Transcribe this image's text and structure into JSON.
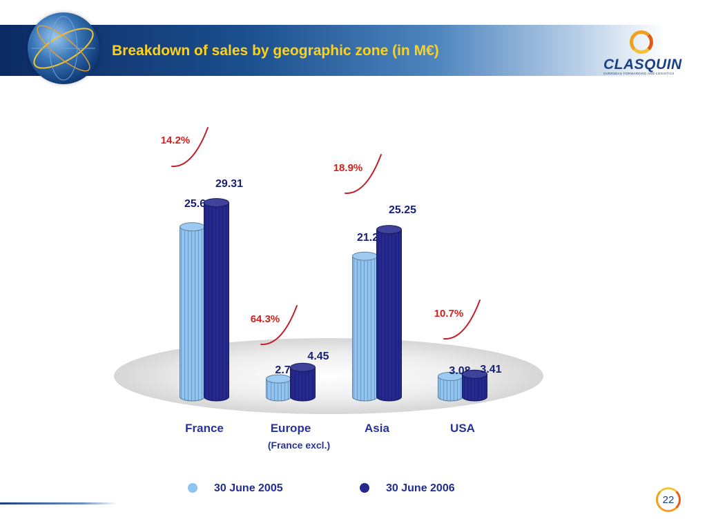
{
  "header": {
    "title": "Breakdown of sales by geographic zone (in M€)",
    "logo_text": "CLASQUIN",
    "logo_subtext": "OVERSEAS FORWARDING AND LOGISTICS"
  },
  "chart_data": {
    "type": "bar",
    "categories": [
      "France",
      "Europe",
      "Asia",
      "USA"
    ],
    "category_sublabels": [
      "",
      "(France excl.)",
      "",
      ""
    ],
    "series": [
      {
        "name": "30 June 2005",
        "color": "#8fc3f0",
        "values": [
          25.66,
          2.71,
          21.23,
          3.08
        ],
        "labels": [
          "25.66",
          "2.71",
          "21.23",
          "3.08"
        ]
      },
      {
        "name": "30 June 2006",
        "color": "#25288c",
        "values": [
          29.31,
          4.45,
          25.25,
          3.41
        ],
        "labels": [
          "29.31",
          "4.45",
          "25.25",
          "3.41"
        ]
      }
    ],
    "growth_labels": [
      "14.2%",
      "64.3%",
      "18.9%",
      "10.7%"
    ],
    "ylim": [
      0,
      30
    ],
    "style": "3d-cylinder",
    "legend_position": "bottom",
    "colors": {
      "growth_text": "#d0201c",
      "growth_arrow": "#c41e2a",
      "value_text": "#17207a",
      "category_text": "#24329a"
    }
  },
  "footer": {
    "page_number": "22"
  }
}
